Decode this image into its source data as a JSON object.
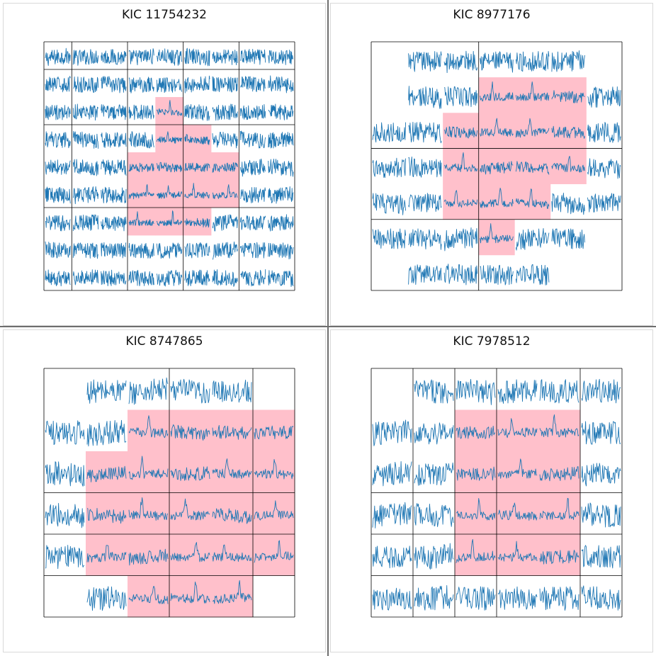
{
  "colors": {
    "mask": "#ffc0cb",
    "flux": "#1f77b4",
    "grid": "#000000"
  },
  "chart_data": [
    {
      "type": "pixel_light_curve_grid",
      "title": "KIC 11754232",
      "rows": 9,
      "cols": 9,
      "present": [
        "111111111",
        "111111111",
        "111111111",
        "111111111",
        "111111111",
        "111111111",
        "111111111",
        "111111111",
        "111111111"
      ],
      "mask": [
        "000000000",
        "000000000",
        "000010000",
        "000011000",
        "000111100",
        "000111100",
        "000111000",
        "000000000",
        "000000000"
      ],
      "aperture_grid": {
        "col_lines": [
          0,
          1,
          3,
          5,
          7,
          9
        ],
        "row_lines": [
          0,
          1,
          3,
          6,
          9
        ]
      }
    },
    {
      "type": "pixel_light_curve_grid",
      "title": "KIC 8977176",
      "rows": 7,
      "cols": 7,
      "present": [
        "0111110",
        "0111111",
        "1111111",
        "1111111",
        "1111111",
        "1111110",
        "0111100"
      ],
      "mask": [
        "0000000",
        "0001110",
        "0011110",
        "0011110",
        "0011100",
        "0001000",
        "0000000"
      ],
      "aperture_grid": {
        "col_lines": [
          0,
          3,
          7
        ],
        "row_lines": [
          0,
          3,
          5,
          7
        ]
      }
    },
    {
      "type": "pixel_light_curve_grid",
      "title": "KIC 8747865",
      "rows": 6,
      "cols": 6,
      "present": [
        "011110",
        "111111",
        "111111",
        "111111",
        "111111",
        "011110"
      ],
      "mask": [
        "000000",
        "001111",
        "011111",
        "011111",
        "011111",
        "001110"
      ],
      "aperture_grid": {
        "col_lines": [
          0,
          3,
          5,
          6
        ],
        "row_lines": [
          0,
          3,
          4,
          5,
          6
        ]
      }
    },
    {
      "type": "pixel_light_curve_grid",
      "title": "KIC 7978512",
      "rows": 6,
      "cols": 6,
      "present": [
        "011111",
        "111111",
        "111111",
        "111111",
        "111111",
        "111111"
      ],
      "mask": [
        "000000",
        "001110",
        "001110",
        "001110",
        "001110",
        "000000"
      ],
      "aperture_grid": {
        "col_lines": [
          0,
          1,
          2,
          3,
          5,
          6
        ],
        "row_lines": [
          0,
          3,
          4,
          5,
          6
        ]
      }
    }
  ]
}
